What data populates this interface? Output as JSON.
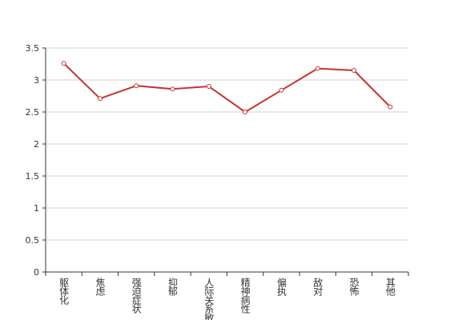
{
  "chart_data": {
    "type": "line",
    "categories": [
      "躯体化",
      "焦虑",
      "强迫症状",
      "抑郁",
      "人际关系敏感",
      "精神病性",
      "偏执",
      "敌对",
      "恐怖",
      "其他"
    ],
    "series": [
      {
        "color": "#c23531",
        "values": [
          3.26,
          2.71,
          2.91,
          2.86,
          2.9,
          2.5,
          2.84,
          3.18,
          3.15,
          2.58
        ]
      }
    ],
    "ylim": [
      0,
      3.5
    ],
    "yticks": [
      0,
      0.5,
      1,
      1.5,
      2,
      2.5,
      3,
      3.5
    ],
    "grid": true
  }
}
